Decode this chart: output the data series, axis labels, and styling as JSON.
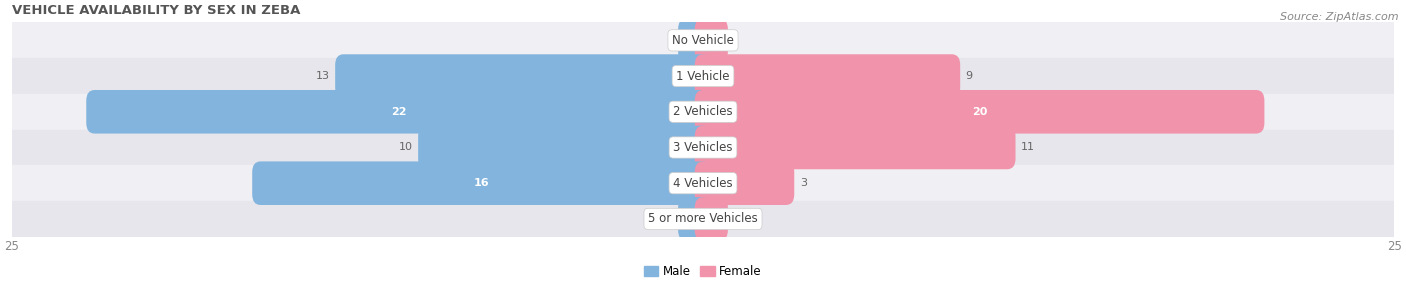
{
  "title": "VEHICLE AVAILABILITY BY SEX IN ZEBA",
  "source": "Source: ZipAtlas.com",
  "categories": [
    "No Vehicle",
    "1 Vehicle",
    "2 Vehicles",
    "3 Vehicles",
    "4 Vehicles",
    "5 or more Vehicles"
  ],
  "male_values": [
    0,
    13,
    22,
    10,
    16,
    0
  ],
  "female_values": [
    0,
    9,
    20,
    11,
    3,
    0
  ],
  "male_color": "#82b4dd",
  "female_color": "#f093ab",
  "male_color_strong": "#5a9dcf",
  "female_color_strong": "#e8607d",
  "row_bg_light": "#f0f0f4",
  "row_bg_dark": "#e6e6ec",
  "label_bg_color": "#ffffff",
  "xlim": 25,
  "bar_height": 0.62,
  "stub_value": 0.6,
  "figsize": [
    14.06,
    3.05
  ],
  "dpi": 100,
  "title_fontsize": 9.5,
  "source_fontsize": 8,
  "label_fontsize": 8.5,
  "value_fontsize": 8,
  "tick_fontsize": 8.5,
  "legend_fontsize": 8.5
}
